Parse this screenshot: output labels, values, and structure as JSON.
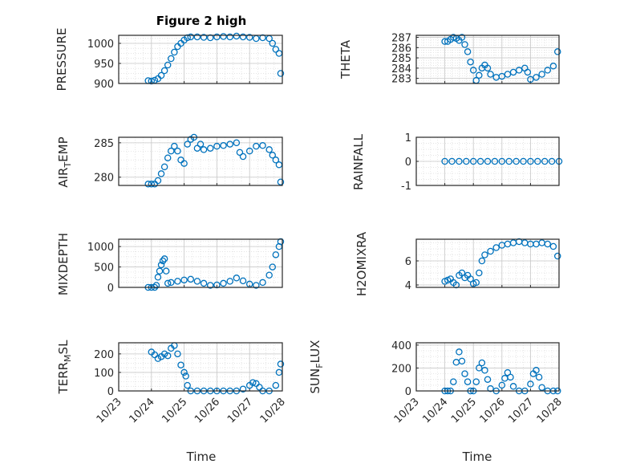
{
  "figure": {
    "title": "Figure 2 high",
    "marker_color": "#0072bd",
    "x_ticks": [
      "10/23",
      "10/24",
      "10/25",
      "10/26",
      "10/27",
      "10/28"
    ],
    "xlabel": "Time"
  },
  "chart_data": [
    {
      "type": "scatter",
      "ylabel": "PRESSURE",
      "xlim": [
        23,
        28
      ],
      "ylim": [
        900,
        1020
      ],
      "y_ticks": [
        900,
        950,
        1000
      ],
      "x": [
        23.9,
        24.0,
        24.1,
        24.2,
        24.3,
        24.4,
        24.5,
        24.6,
        24.7,
        24.8,
        24.9,
        25.0,
        25.1,
        25.2,
        25.4,
        25.6,
        25.8,
        26.0,
        26.2,
        26.4,
        26.6,
        26.8,
        27.0,
        27.2,
        27.4,
        27.6,
        27.7,
        27.8,
        27.9,
        27.95
      ],
      "y": [
        907,
        906,
        908,
        912,
        920,
        932,
        946,
        962,
        978,
        992,
        1000,
        1008,
        1014,
        1016,
        1016,
        1015,
        1014,
        1016,
        1017,
        1016,
        1018,
        1016,
        1015,
        1012,
        1014,
        1012,
        1000,
        985,
        975,
        925
      ]
    },
    {
      "type": "scatter",
      "ylabel": "THETA",
      "xlim": [
        23,
        28
      ],
      "ylim": [
        282.5,
        287.2
      ],
      "y_ticks": [
        283,
        284,
        285,
        286,
        287
      ],
      "x": [
        24.0,
        24.1,
        24.2,
        24.3,
        24.4,
        24.5,
        24.6,
        24.7,
        24.8,
        24.9,
        25.0,
        25.1,
        25.2,
        25.3,
        25.4,
        25.5,
        25.6,
        25.8,
        26.0,
        26.2,
        26.4,
        26.6,
        26.8,
        26.9,
        27.0,
        27.2,
        27.4,
        27.6,
        27.8,
        27.95
      ],
      "y": [
        286.6,
        286.6,
        286.8,
        287.0,
        286.9,
        286.7,
        287.0,
        286.3,
        285.6,
        284.6,
        283.8,
        282.8,
        283.3,
        284.0,
        284.3,
        284.0,
        283.4,
        283.1,
        283.2,
        283.4,
        283.6,
        283.8,
        284.0,
        283.6,
        282.9,
        283.1,
        283.4,
        283.8,
        284.2,
        285.6
      ]
    },
    {
      "type": "scatter",
      "ylabel": "AIR_TEMP",
      "xlim": [
        23,
        28
      ],
      "ylim": [
        278.8,
        285.8
      ],
      "y_ticks": [
        280,
        285
      ],
      "x": [
        23.9,
        24.0,
        24.1,
        24.2,
        24.3,
        24.4,
        24.5,
        24.6,
        24.7,
        24.8,
        24.9,
        25.0,
        25.1,
        25.2,
        25.3,
        25.4,
        25.5,
        25.6,
        25.8,
        26.0,
        26.2,
        26.4,
        26.6,
        26.7,
        26.8,
        27.0,
        27.2,
        27.4,
        27.6,
        27.7,
        27.8,
        27.9,
        27.95
      ],
      "y": [
        279.0,
        279.0,
        279.0,
        279.5,
        280.5,
        281.5,
        282.8,
        283.8,
        284.5,
        283.8,
        282.5,
        282.0,
        284.8,
        285.5,
        285.8,
        284.2,
        284.8,
        284.0,
        284.2,
        284.5,
        284.6,
        284.8,
        285.0,
        283.6,
        283.0,
        283.8,
        284.5,
        284.6,
        284.0,
        283.2,
        282.5,
        281.8,
        279.3
      ]
    },
    {
      "type": "scatter",
      "ylabel": "MIXDEPTH",
      "xlim": [
        23,
        28
      ],
      "ylim": [
        0,
        1180
      ],
      "y_ticks": [
        0,
        500,
        1000
      ],
      "x": [
        23.9,
        24.0,
        24.1,
        24.15,
        24.2,
        24.25,
        24.3,
        24.35,
        24.4,
        24.45,
        24.5,
        24.6,
        24.8,
        25.0,
        25.2,
        25.4,
        25.6,
        25.8,
        26.0,
        26.2,
        26.4,
        26.6,
        26.8,
        27.0,
        27.2,
        27.4,
        27.6,
        27.7,
        27.8,
        27.9,
        27.95
      ],
      "y": [
        0,
        0,
        0,
        50,
        250,
        400,
        550,
        650,
        700,
        400,
        100,
        120,
        150,
        180,
        200,
        150,
        100,
        50,
        60,
        100,
        150,
        230,
        160,
        80,
        50,
        120,
        300,
        500,
        800,
        1000,
        1120
      ]
    },
    {
      "type": "scatter",
      "ylabel": "RAINFALL",
      "xlim": [
        23,
        28
      ],
      "ylim": [
        -1,
        1
      ],
      "y_ticks": [
        -1,
        0,
        1
      ],
      "x": [
        24.0,
        24.25,
        24.5,
        24.75,
        25.0,
        25.25,
        25.5,
        25.75,
        26.0,
        26.25,
        26.5,
        26.75,
        27.0,
        27.25,
        27.5,
        27.75,
        28.0
      ],
      "y": [
        0,
        0,
        0,
        0,
        0,
        0,
        0,
        0,
        0,
        0,
        0,
        0,
        0,
        0,
        0,
        0,
        0
      ]
    },
    {
      "type": "scatter",
      "ylabel": "H2OMIXRA",
      "xlim": [
        23,
        28
      ],
      "ylim": [
        3.8,
        7.8
      ],
      "y_ticks": [
        4,
        6
      ],
      "x": [
        24.0,
        24.1,
        24.2,
        24.3,
        24.4,
        24.5,
        24.6,
        24.7,
        24.8,
        24.9,
        25.0,
        25.1,
        25.2,
        25.3,
        25.4,
        25.6,
        25.8,
        26.0,
        26.2,
        26.4,
        26.6,
        26.8,
        27.0,
        27.2,
        27.4,
        27.6,
        27.8,
        27.95
      ],
      "y": [
        4.3,
        4.4,
        4.5,
        4.2,
        4.0,
        4.8,
        5.0,
        4.6,
        4.8,
        4.5,
        4.1,
        4.2,
        5.0,
        6.0,
        6.5,
        6.8,
        7.1,
        7.3,
        7.4,
        7.5,
        7.6,
        7.5,
        7.4,
        7.4,
        7.5,
        7.4,
        7.2,
        6.4
      ]
    },
    {
      "type": "scatter",
      "ylabel": "TERR_MSL",
      "xlim": [
        23,
        28
      ],
      "ylim": [
        0,
        260
      ],
      "y_ticks": [
        0,
        100,
        200
      ],
      "x": [
        24.0,
        24.1,
        24.2,
        24.3,
        24.4,
        24.5,
        24.6,
        24.7,
        24.8,
        24.9,
        25.0,
        25.05,
        25.1,
        25.2,
        25.4,
        25.6,
        25.8,
        26.0,
        26.2,
        26.4,
        26.6,
        26.8,
        27.0,
        27.1,
        27.2,
        27.3,
        27.4,
        27.6,
        27.8,
        27.9,
        27.95
      ],
      "y": [
        210,
        195,
        175,
        185,
        200,
        190,
        230,
        245,
        200,
        140,
        100,
        80,
        30,
        0,
        0,
        0,
        0,
        0,
        0,
        0,
        0,
        10,
        30,
        45,
        40,
        20,
        0,
        0,
        30,
        100,
        145
      ]
    },
    {
      "type": "scatter",
      "ylabel": "SUN_FLUX",
      "xlim": [
        23,
        28
      ],
      "ylim": [
        0,
        420
      ],
      "y_ticks": [
        0,
        200,
        400
      ],
      "x": [
        24.0,
        24.1,
        24.2,
        24.3,
        24.4,
        24.5,
        24.6,
        24.7,
        24.8,
        24.9,
        25.0,
        25.1,
        25.2,
        25.3,
        25.4,
        25.5,
        25.6,
        25.8,
        26.0,
        26.1,
        26.2,
        26.3,
        26.4,
        26.6,
        26.8,
        27.0,
        27.1,
        27.2,
        27.3,
        27.4,
        27.6,
        27.8,
        27.95
      ],
      "y": [
        0,
        0,
        0,
        80,
        250,
        340,
        260,
        150,
        80,
        0,
        0,
        80,
        200,
        245,
        180,
        100,
        20,
        0,
        50,
        110,
        160,
        120,
        40,
        0,
        0,
        60,
        150,
        180,
        120,
        30,
        0,
        0,
        0
      ]
    }
  ]
}
